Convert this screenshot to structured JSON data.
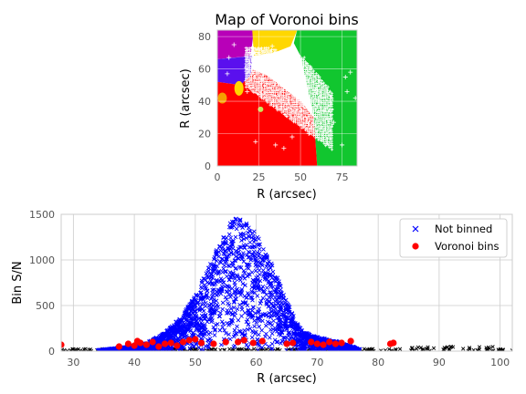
{
  "chart_data": [
    {
      "type": "heatmap",
      "title": "Map of Voronoi bins",
      "xlabel": "R (arcsec)",
      "ylabel": "R (arcsec)",
      "xlim": [
        0,
        84
      ],
      "ylim": [
        0,
        84
      ],
      "xticks": [
        "0",
        "25",
        "50",
        "75"
      ],
      "yticks": [
        "0",
        "20",
        "40",
        "60",
        "80"
      ],
      "grid": true,
      "colors": {
        "red": "#ff0000",
        "green": "#11c62f",
        "yellow": "#ffd700",
        "magenta": "#b800b8",
        "blue": "#5a10ee",
        "marker": "#ffffff"
      }
    },
    {
      "type": "scatter",
      "xlabel": "R (arcsec)",
      "ylabel": "Bin S/N",
      "xlim": [
        28,
        102
      ],
      "ylim": [
        0,
        1500
      ],
      "xticks": [
        "30",
        "40",
        "50",
        "60",
        "70",
        "80",
        "90",
        "100"
      ],
      "yticks": [
        "0",
        "500",
        "1000",
        "1500"
      ],
      "grid": true,
      "legend_position": "top-right",
      "series": [
        {
          "name": "Not binned",
          "marker": "x",
          "color": "#0000ff",
          "envelope": [
            [
              34,
              10
            ],
            [
              38,
              40
            ],
            [
              42,
              90
            ],
            [
              45,
              200
            ],
            [
              48,
              400
            ],
            [
              50,
              620
            ],
            [
              52,
              900
            ],
            [
              54,
              1200
            ],
            [
              56,
              1440
            ],
            [
              57,
              1460
            ],
            [
              59,
              1380
            ],
            [
              61,
              1180
            ],
            [
              63,
              900
            ],
            [
              65,
              550
            ],
            [
              67,
              270
            ],
            [
              69,
              170
            ],
            [
              71,
              140
            ],
            [
              73,
              110
            ],
            [
              75,
              70
            ],
            [
              77,
              20
            ]
          ]
        },
        {
          "name": "Voronoi bins",
          "marker": "o",
          "color": "#ff0000",
          "x": [
            28,
            37.5,
            39,
            40,
            40.5,
            41,
            42,
            43,
            44,
            45,
            46,
            47,
            48,
            49,
            50,
            51,
            53,
            55,
            57,
            58,
            59.5,
            61,
            65,
            66,
            69,
            70,
            71,
            72,
            73,
            74,
            75.5,
            82,
            82.5
          ],
          "y": [
            70,
            50,
            80,
            60,
            110,
            90,
            70,
            100,
            50,
            80,
            90,
            60,
            100,
            120,
            130,
            90,
            80,
            100,
            100,
            120,
            90,
            110,
            80,
            90,
            100,
            80,
            70,
            100,
            80,
            90,
            110,
            80,
            90
          ]
        },
        {
          "name": "",
          "marker": "x",
          "color": "#000000",
          "note_range": [
            [
              28,
              102
            ],
            [
              0,
              50
            ]
          ]
        }
      ]
    }
  ]
}
